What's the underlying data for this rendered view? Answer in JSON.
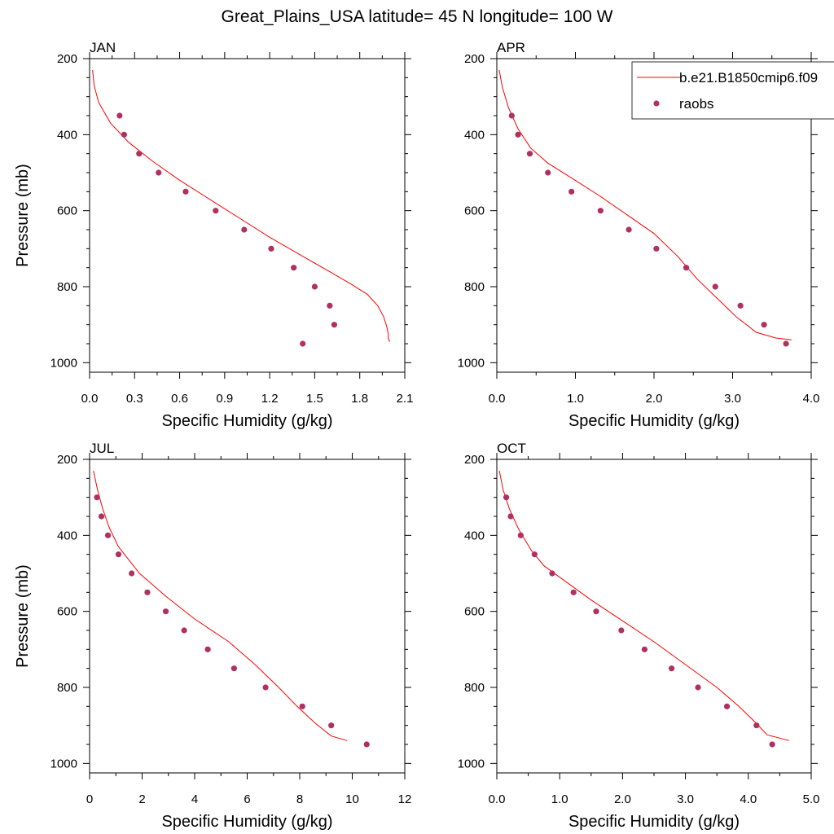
{
  "title": "Great_Plains_USA  latitude= 45 N longitude= 100 W",
  "colors": {
    "model": "#ff0000",
    "obs": "#b03060",
    "axis": "#000000"
  },
  "legend": {
    "model_label": "b.e21.B1850cmip6.f09",
    "obs_label": "raobs",
    "position": "top-right of APR panel"
  },
  "chart_data": [
    {
      "type": "line",
      "panel_label": "JAN",
      "xlabel": "Specific Humidity (g/kg)",
      "ylabel": "Pressure (mb)",
      "xlim": [
        0,
        2.1
      ],
      "ylim": [
        200,
        1025
      ],
      "y_reversed": true,
      "xticks": [
        0,
        0.3,
        0.6,
        0.9,
        1.2,
        1.5,
        1.8,
        2.1
      ],
      "xtick_labels": [
        "0.0",
        "0.3",
        "0.6",
        "0.9",
        "1.2",
        "1.5",
        "1.8",
        "2.1"
      ],
      "yticks": [
        200,
        400,
        600,
        800,
        1000
      ],
      "series": [
        {
          "name": "b.e21.B1850cmip6.f09",
          "kind": "line",
          "x": [
            0.02,
            0.03,
            0.06,
            0.14,
            0.26,
            0.42,
            0.6,
            0.8,
            1.0,
            1.2,
            1.42,
            1.62,
            1.75,
            1.85,
            1.92,
            1.96,
            1.98,
            1.99,
            1.99,
            2.0
          ],
          "y": [
            230,
            270,
            315,
            370,
            420,
            470,
            520,
            570,
            620,
            670,
            720,
            765,
            795,
            820,
            850,
            880,
            905,
            925,
            935,
            945
          ]
        },
        {
          "name": "raobs",
          "kind": "scatter",
          "x": [
            0.2,
            0.23,
            0.33,
            0.46,
            0.64,
            0.84,
            1.03,
            1.21,
            1.36,
            1.5,
            1.6,
            1.63,
            1.42
          ],
          "y": [
            350,
            400,
            450,
            500,
            550,
            600,
            650,
            700,
            750,
            800,
            850,
            900,
            950
          ]
        }
      ]
    },
    {
      "type": "line",
      "panel_label": "APR",
      "xlabel": "Specific Humidity (g/kg)",
      "ylabel": "",
      "xlim": [
        0,
        4.0
      ],
      "ylim": [
        200,
        1025
      ],
      "y_reversed": true,
      "xticks": [
        0,
        1,
        2,
        3,
        4
      ],
      "xtick_labels": [
        "0.0",
        "1.0",
        "2.0",
        "3.0",
        "4.0"
      ],
      "yticks": [
        200,
        400,
        600,
        800,
        1000
      ],
      "series": [
        {
          "name": "b.e21.B1850cmip6.f09",
          "kind": "line",
          "x": [
            0.03,
            0.07,
            0.15,
            0.27,
            0.43,
            0.65,
            0.92,
            1.3,
            1.65,
            2.0,
            2.3,
            2.55,
            2.8,
            3.05,
            3.3,
            3.55,
            3.75
          ],
          "y": [
            230,
            275,
            330,
            385,
            435,
            475,
            510,
            560,
            610,
            660,
            720,
            780,
            830,
            880,
            920,
            935,
            940
          ]
        },
        {
          "name": "raobs",
          "kind": "scatter",
          "x": [
            0.19,
            0.27,
            0.42,
            0.65,
            0.95,
            1.32,
            1.68,
            2.03,
            2.41,
            2.78,
            3.1,
            3.4,
            3.68
          ],
          "y": [
            350,
            400,
            450,
            500,
            550,
            600,
            650,
            700,
            750,
            800,
            850,
            900,
            950
          ]
        }
      ]
    },
    {
      "type": "line",
      "panel_label": "JUL",
      "xlabel": "Specific Humidity (g/kg)",
      "ylabel": "Pressure (mb)",
      "xlim": [
        0,
        12
      ],
      "ylim": [
        200,
        1025
      ],
      "y_reversed": true,
      "xticks": [
        0,
        2,
        4,
        6,
        8,
        10,
        12
      ],
      "xtick_labels": [
        "0",
        "2",
        "4",
        "6",
        "8",
        "10",
        "12"
      ],
      "yticks": [
        200,
        400,
        600,
        800,
        1000
      ],
      "series": [
        {
          "name": "b.e21.B1850cmip6.f09",
          "kind": "line",
          "x": [
            0.15,
            0.3,
            0.5,
            0.75,
            1.1,
            1.9,
            2.9,
            4.0,
            5.3,
            6.3,
            7.2,
            7.9,
            8.6,
            9.2,
            9.8
          ],
          "y": [
            230,
            280,
            330,
            380,
            430,
            500,
            560,
            620,
            680,
            740,
            800,
            850,
            895,
            928,
            940
          ]
        },
        {
          "name": "raobs",
          "kind": "scatter",
          "x": [
            0.28,
            0.45,
            0.7,
            1.1,
            1.6,
            2.2,
            2.9,
            3.6,
            4.5,
            5.5,
            6.7,
            8.1,
            9.2,
            10.55
          ],
          "y": [
            300,
            350,
            400,
            450,
            500,
            550,
            600,
            650,
            700,
            750,
            800,
            850,
            900,
            950
          ]
        }
      ]
    },
    {
      "type": "line",
      "panel_label": "OCT",
      "xlabel": "Specific Humidity (g/kg)",
      "ylabel": "",
      "xlim": [
        0,
        5.0
      ],
      "ylim": [
        200,
        1025
      ],
      "y_reversed": true,
      "xticks": [
        0,
        1,
        2,
        3,
        4,
        5
      ],
      "xtick_labels": [
        "0.0",
        "1.0",
        "2.0",
        "3.0",
        "4.0",
        "5.0"
      ],
      "yticks": [
        200,
        400,
        600,
        800,
        1000
      ],
      "series": [
        {
          "name": "b.e21.B1850cmip6.f09",
          "kind": "line",
          "x": [
            0.04,
            0.1,
            0.2,
            0.35,
            0.55,
            0.75,
            1.0,
            1.5,
            2.0,
            2.5,
            3.0,
            3.5,
            3.85,
            4.1,
            4.3,
            4.65
          ],
          "y": [
            230,
            280,
            330,
            385,
            440,
            480,
            510,
            570,
            625,
            680,
            740,
            800,
            850,
            890,
            925,
            940
          ]
        },
        {
          "name": "raobs",
          "kind": "scatter",
          "x": [
            0.15,
            0.22,
            0.38,
            0.6,
            0.88,
            1.22,
            1.58,
            1.98,
            2.35,
            2.78,
            3.2,
            3.66,
            4.13,
            4.38
          ],
          "y": [
            300,
            350,
            400,
            450,
            500,
            550,
            600,
            650,
            700,
            750,
            800,
            850,
            900,
            950
          ]
        }
      ]
    }
  ]
}
